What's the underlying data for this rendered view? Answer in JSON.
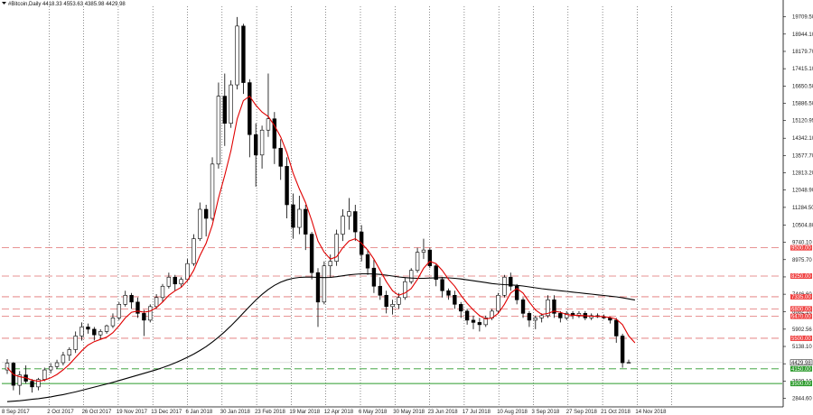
{
  "header": {
    "text": "#Bitcoin,Daily  4418.33 4553.63 4385.98 4429.98"
  },
  "colors": {
    "background": "#ffffff",
    "candle": "#000000",
    "ma_fast": "#e00000",
    "ma_slow": "#000000",
    "resistance": "#e07070",
    "resistance_label_bg": "#f04040",
    "support": "#2a9a2a",
    "support_label_bg": "#2a9a2a",
    "price_label_bg": "#ffffff",
    "grid": "#404040"
  },
  "chart_data": {
    "type": "candlestick",
    "x_tick_labels": [
      "8 Sep 2017",
      "2 Oct 2017",
      "26 Oct 2017",
      "19 Nov 2017",
      "13 Dec 2017",
      "6 Jan 2018",
      "30 Jan 2018",
      "23 Feb 2018",
      "19 Mar 2018",
      "12 Apr 2018",
      "6 May 2018",
      "30 May 2018",
      "23 Jun 2018",
      "17 Jul 2018",
      "10 Aug 2018",
      "3 Sep 2018",
      "27 Sep 2018",
      "21 Oct 2018",
      "14 Nov 2018"
    ],
    "y_tick_labels": [
      "19709.50",
      "18944.10",
      "18179.70",
      "17415.10",
      "16650.50",
      "15886.50",
      "15120.95",
      "14342.10",
      "13577.70",
      "12813.20",
      "12048.90",
      "11284.50",
      "10504.80",
      "9740.10",
      "8975.70",
      "8211.20",
      "7446.60",
      "6682.10",
      "5902.56",
      "5138.10",
      "4373.60",
      "3609.10",
      "2844.60"
    ],
    "y_range": [
      2467.0,
      20172.0
    ],
    "resistance_levels": [
      {
        "value": 9500,
        "label": "9500.00"
      },
      {
        "value": 8250,
        "label": "8250.00"
      },
      {
        "value": 7335,
        "label": "7335.00"
      },
      {
        "value": 6800,
        "label": "6800.00"
      },
      {
        "value": 6470,
        "label": "6470.00"
      },
      {
        "value": 5500,
        "label": "5500.00"
      }
    ],
    "support_levels": [
      {
        "value": 4150,
        "label": "4150.00"
      },
      {
        "value": 3500,
        "label": "3500.00"
      }
    ],
    "current_price": {
      "value": 4429.98,
      "label": "4429.98"
    },
    "candles": [
      {
        "o": 4100,
        "h": 4580,
        "l": 3920,
        "c": 4400
      },
      {
        "o": 4400,
        "h": 4450,
        "l": 3200,
        "c": 3420
      },
      {
        "o": 3420,
        "h": 4050,
        "l": 3000,
        "c": 3880
      },
      {
        "o": 3880,
        "h": 4300,
        "l": 3500,
        "c": 3600
      },
      {
        "o": 3600,
        "h": 3700,
        "l": 3100,
        "c": 3350
      },
      {
        "o": 3350,
        "h": 3750,
        "l": 3200,
        "c": 3680
      },
      {
        "o": 3680,
        "h": 4200,
        "l": 3600,
        "c": 4100
      },
      {
        "o": 4100,
        "h": 4400,
        "l": 3950,
        "c": 4250
      },
      {
        "o": 4250,
        "h": 4550,
        "l": 4150,
        "c": 4420
      },
      {
        "o": 4420,
        "h": 4900,
        "l": 4300,
        "c": 4750
      },
      {
        "o": 4750,
        "h": 5100,
        "l": 4500,
        "c": 5000
      },
      {
        "o": 5000,
        "h": 5800,
        "l": 4850,
        "c": 5600
      },
      {
        "o": 5600,
        "h": 6200,
        "l": 5400,
        "c": 6000
      },
      {
        "o": 6000,
        "h": 6150,
        "l": 5700,
        "c": 5900
      },
      {
        "o": 5900,
        "h": 6000,
        "l": 5400,
        "c": 5650
      },
      {
        "o": 5650,
        "h": 5900,
        "l": 5450,
        "c": 5800
      },
      {
        "o": 5800,
        "h": 6100,
        "l": 5700,
        "c": 6050
      },
      {
        "o": 6050,
        "h": 6600,
        "l": 5950,
        "c": 6400
      },
      {
        "o": 6400,
        "h": 7100,
        "l": 6300,
        "c": 7000
      },
      {
        "o": 7000,
        "h": 7600,
        "l": 6900,
        "c": 7400
      },
      {
        "o": 7400,
        "h": 7500,
        "l": 6800,
        "c": 7100
      },
      {
        "o": 7100,
        "h": 7300,
        "l": 6400,
        "c": 6600
      },
      {
        "o": 6600,
        "h": 6750,
        "l": 5600,
        "c": 6300
      },
      {
        "o": 6300,
        "h": 7000,
        "l": 6200,
        "c": 6900
      },
      {
        "o": 6900,
        "h": 7450,
        "l": 6800,
        "c": 7300
      },
      {
        "o": 7300,
        "h": 7900,
        "l": 7100,
        "c": 7800
      },
      {
        "o": 7800,
        "h": 8400,
        "l": 7700,
        "c": 8200
      },
      {
        "o": 8200,
        "h": 8300,
        "l": 7600,
        "c": 7900
      },
      {
        "o": 7900,
        "h": 8200,
        "l": 7750,
        "c": 8100
      },
      {
        "o": 8100,
        "h": 9000,
        "l": 8000,
        "c": 8800
      },
      {
        "o": 8800,
        "h": 10100,
        "l": 8700,
        "c": 9900
      },
      {
        "o": 9900,
        "h": 11500,
        "l": 9800,
        "c": 11200
      },
      {
        "o": 11200,
        "h": 11400,
        "l": 10000,
        "c": 10800
      },
      {
        "o": 10800,
        "h": 13500,
        "l": 10700,
        "c": 13200
      },
      {
        "o": 13200,
        "h": 16800,
        "l": 13000,
        "c": 16200
      },
      {
        "o": 16200,
        "h": 17200,
        "l": 14000,
        "c": 15000
      },
      {
        "o": 15000,
        "h": 16900,
        "l": 14800,
        "c": 16700
      },
      {
        "o": 16700,
        "h": 19700,
        "l": 16500,
        "c": 19300
      },
      {
        "o": 19300,
        "h": 19400,
        "l": 16300,
        "c": 16800
      },
      {
        "o": 16800,
        "h": 16950,
        "l": 13500,
        "c": 14500
      },
      {
        "o": 14500,
        "h": 15000,
        "l": 12200,
        "c": 13600
      },
      {
        "o": 13600,
        "h": 14900,
        "l": 13000,
        "c": 14700
      },
      {
        "o": 14700,
        "h": 17200,
        "l": 14400,
        "c": 15200
      },
      {
        "o": 15200,
        "h": 15500,
        "l": 13200,
        "c": 13900
      },
      {
        "o": 13900,
        "h": 14300,
        "l": 12500,
        "c": 13100
      },
      {
        "o": 13100,
        "h": 13500,
        "l": 10800,
        "c": 11400
      },
      {
        "o": 11400,
        "h": 11900,
        "l": 9900,
        "c": 10400
      },
      {
        "o": 10400,
        "h": 11800,
        "l": 10100,
        "c": 11200
      },
      {
        "o": 11200,
        "h": 11400,
        "l": 9400,
        "c": 10100
      },
      {
        "o": 10100,
        "h": 10200,
        "l": 8100,
        "c": 8400
      },
      {
        "o": 8400,
        "h": 8600,
        "l": 6000,
        "c": 7100
      },
      {
        "o": 7100,
        "h": 8900,
        "l": 7000,
        "c": 8700
      },
      {
        "o": 8700,
        "h": 9200,
        "l": 8200,
        "c": 8900
      },
      {
        "o": 8900,
        "h": 10300,
        "l": 8700,
        "c": 10100
      },
      {
        "o": 10100,
        "h": 11200,
        "l": 9800,
        "c": 10900
      },
      {
        "o": 10900,
        "h": 11700,
        "l": 10300,
        "c": 11100
      },
      {
        "o": 11100,
        "h": 11400,
        "l": 9800,
        "c": 10200
      },
      {
        "o": 10200,
        "h": 10500,
        "l": 8900,
        "c": 9200
      },
      {
        "o": 9200,
        "h": 9400,
        "l": 8300,
        "c": 8600
      },
      {
        "o": 8600,
        "h": 9000,
        "l": 7500,
        "c": 7800
      },
      {
        "o": 7800,
        "h": 8200,
        "l": 7200,
        "c": 7400
      },
      {
        "o": 7400,
        "h": 7600,
        "l": 6600,
        "c": 6900
      },
      {
        "o": 6900,
        "h": 7200,
        "l": 6550,
        "c": 7000
      },
      {
        "o": 7000,
        "h": 7500,
        "l": 6800,
        "c": 7300
      },
      {
        "o": 7300,
        "h": 8200,
        "l": 7200,
        "c": 8000
      },
      {
        "o": 8000,
        "h": 8600,
        "l": 7900,
        "c": 8500
      },
      {
        "o": 8500,
        "h": 9500,
        "l": 8400,
        "c": 9300
      },
      {
        "o": 9300,
        "h": 9900,
        "l": 9000,
        "c": 9400
      },
      {
        "o": 9400,
        "h": 9500,
        "l": 8600,
        "c": 8700
      },
      {
        "o": 8700,
        "h": 8800,
        "l": 7800,
        "c": 8100
      },
      {
        "o": 8100,
        "h": 8200,
        "l": 7300,
        "c": 7600
      },
      {
        "o": 7600,
        "h": 7700,
        "l": 7200,
        "c": 7400
      },
      {
        "o": 7400,
        "h": 7600,
        "l": 6800,
        "c": 7000
      },
      {
        "o": 7000,
        "h": 7100,
        "l": 6400,
        "c": 6700
      },
      {
        "o": 6700,
        "h": 6800,
        "l": 6100,
        "c": 6300
      },
      {
        "o": 6300,
        "h": 6500,
        "l": 5900,
        "c": 6200
      },
      {
        "o": 6200,
        "h": 6400,
        "l": 5800,
        "c": 6100
      },
      {
        "o": 6100,
        "h": 6500,
        "l": 6000,
        "c": 6400
      },
      {
        "o": 6400,
        "h": 6800,
        "l": 6300,
        "c": 6700
      },
      {
        "o": 6700,
        "h": 7500,
        "l": 6600,
        "c": 7400
      },
      {
        "o": 7400,
        "h": 8300,
        "l": 7300,
        "c": 8200
      },
      {
        "o": 8200,
        "h": 8400,
        "l": 7600,
        "c": 7800
      },
      {
        "o": 7800,
        "h": 7900,
        "l": 7000,
        "c": 7200
      },
      {
        "o": 7200,
        "h": 7300,
        "l": 6400,
        "c": 6600
      },
      {
        "o": 6600,
        "h": 6700,
        "l": 6000,
        "c": 6300
      },
      {
        "o": 6300,
        "h": 6500,
        "l": 5900,
        "c": 6400
      },
      {
        "o": 6400,
        "h": 6600,
        "l": 6200,
        "c": 6500
      },
      {
        "o": 6500,
        "h": 7400,
        "l": 6400,
        "c": 7200
      },
      {
        "o": 7200,
        "h": 7400,
        "l": 6400,
        "c": 6600
      },
      {
        "o": 6600,
        "h": 6700,
        "l": 6200,
        "c": 6400
      },
      {
        "o": 6400,
        "h": 6700,
        "l": 6300,
        "c": 6600
      },
      {
        "o": 6600,
        "h": 6700,
        "l": 6350,
        "c": 6500
      },
      {
        "o": 6500,
        "h": 6700,
        "l": 6400,
        "c": 6600
      },
      {
        "o": 6600,
        "h": 6700,
        "l": 6300,
        "c": 6400
      },
      {
        "o": 6400,
        "h": 6600,
        "l": 6300,
        "c": 6500
      },
      {
        "o": 6500,
        "h": 6600,
        "l": 6400,
        "c": 6450
      },
      {
        "o": 6450,
        "h": 6550,
        "l": 6350,
        "c": 6400
      },
      {
        "o": 6400,
        "h": 6450,
        "l": 6150,
        "c": 6300
      },
      {
        "o": 6300,
        "h": 6400,
        "l": 5300,
        "c": 5600
      },
      {
        "o": 5600,
        "h": 5700,
        "l": 4200,
        "c": 4418
      },
      {
        "o": 4418,
        "h": 4554,
        "l": 4386,
        "c": 4430
      }
    ],
    "ma_fast": [
      4200,
      3900,
      3800,
      3750,
      3650,
      3600,
      3650,
      3750,
      3900,
      4100,
      4350,
      4650,
      4950,
      5200,
      5350,
      5450,
      5550,
      5750,
      6050,
      6400,
      6650,
      6700,
      6650,
      6700,
      6850,
      7100,
      7400,
      7600,
      7750,
      8050,
      8500,
      9150,
      9700,
      10500,
      11700,
      12700,
      13800,
      15200,
      16000,
      16200,
      15800,
      15500,
      15300,
      14900,
      14400,
      13700,
      12800,
      12100,
      11500,
      10700,
      9800,
      9300,
      9000,
      9100,
      9500,
      9800,
      9900,
      9700,
      9400,
      9000,
      8500,
      8000,
      7600,
      7400,
      7500,
      7700,
      8100,
      8600,
      8900,
      8800,
      8500,
      8100,
      7800,
      7400,
      7050,
      6750,
      6500,
      6350,
      6400,
      6600,
      7000,
      7500,
      7700,
      7500,
      7100,
      6750,
      6550,
      6600,
      6700,
      6650,
      6550,
      6520,
      6510,
      6500,
      6480,
      6470,
      6450,
      6420,
      6350,
      6100,
      5600,
      5300
    ],
    "ma_slow": [
      2700,
      2720,
      2740,
      2770,
      2800,
      2830,
      2870,
      2910,
      2960,
      3010,
      3070,
      3130,
      3200,
      3270,
      3340,
      3410,
      3480,
      3550,
      3630,
      3710,
      3790,
      3870,
      3950,
      4030,
      4110,
      4200,
      4300,
      4410,
      4530,
      4660,
      4800,
      4960,
      5130,
      5330,
      5550,
      5790,
      6050,
      6330,
      6620,
      6910,
      7190,
      7440,
      7660,
      7840,
      7980,
      8080,
      8150,
      8190,
      8200,
      8200,
      8190,
      8180,
      8190,
      8220,
      8260,
      8300,
      8330,
      8350,
      8350,
      8340,
      8320,
      8290,
      8250,
      8210,
      8180,
      8160,
      8150,
      8150,
      8160,
      8170,
      8180,
      8170,
      8150,
      8120,
      8080,
      8040,
      8000,
      7960,
      7920,
      7890,
      7870,
      7860,
      7840,
      7810,
      7770,
      7730,
      7690,
      7660,
      7630,
      7600,
      7570,
      7540,
      7510,
      7480,
      7450,
      7420,
      7390,
      7360,
      7330,
      7290,
      7240,
      7190
    ]
  }
}
